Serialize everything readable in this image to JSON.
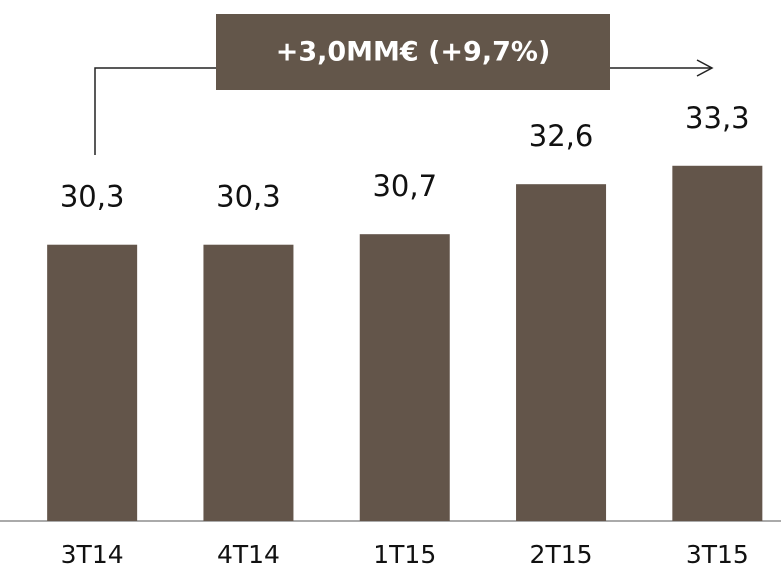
{
  "chart_data": {
    "type": "bar",
    "categories": [
      "3T14",
      "4T14",
      "1T15",
      "2T15",
      "3T15"
    ],
    "values": [
      30.3,
      30.3,
      30.7,
      32.6,
      33.3
    ],
    "value_labels": [
      "30,3",
      "30,3",
      "30,7",
      "32,6",
      "33,3"
    ],
    "color": "#63554a",
    "ylim": [
      19.8,
      39.6
    ],
    "annotation": "+3,0MM€ (+9,7%)"
  }
}
